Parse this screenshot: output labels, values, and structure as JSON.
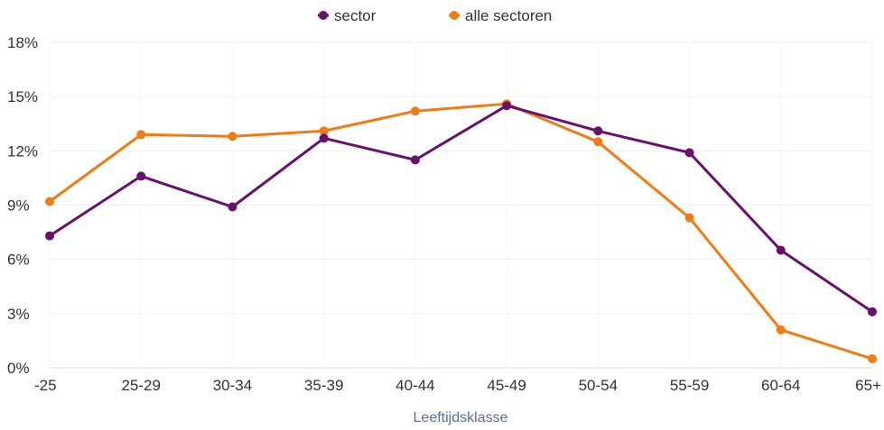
{
  "chart_data": {
    "type": "line",
    "title": "",
    "xlabel": "Leeftijdsklasse",
    "ylabel": "",
    "categories": [
      "-25",
      "25-29",
      "30-34",
      "35-39",
      "40-44",
      "45-49",
      "50-54",
      "55-59",
      "60-64",
      "65+"
    ],
    "series": [
      {
        "name": "sector",
        "color": "#6a0f6e",
        "values": [
          7.3,
          10.6,
          8.9,
          12.7,
          11.5,
          14.5,
          13.1,
          11.9,
          6.5,
          3.1
        ]
      },
      {
        "name": "alle sectoren",
        "color": "#f07d14",
        "values": [
          9.2,
          12.9,
          12.8,
          13.1,
          14.2,
          14.6,
          12.5,
          8.3,
          2.1,
          0.5
        ]
      }
    ],
    "yticks": [
      "0%",
      "3%",
      "6%",
      "9%",
      "12%",
      "15%",
      "18%"
    ],
    "ylim": [
      0,
      18
    ],
    "grid": true,
    "legend_position": "top-center"
  }
}
